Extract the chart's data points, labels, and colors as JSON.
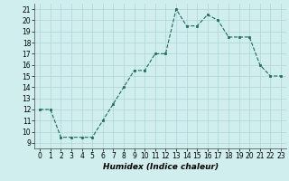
{
  "x": [
    0,
    1,
    2,
    3,
    4,
    5,
    6,
    7,
    8,
    9,
    10,
    11,
    12,
    13,
    14,
    15,
    16,
    17,
    18,
    19,
    20,
    21,
    22,
    23
  ],
  "y": [
    12,
    12,
    9.5,
    9.5,
    9.5,
    9.5,
    11,
    12.5,
    14,
    15.5,
    15.5,
    17,
    17,
    21,
    19.5,
    19.5,
    20.5,
    20,
    18.5,
    18.5,
    18.5,
    16,
    15,
    15
  ],
  "xlabel": "Humidex (Indice chaleur)",
  "xlim": [
    -0.5,
    23.5
  ],
  "ylim": [
    8.5,
    21.5
  ],
  "yticks": [
    9,
    10,
    11,
    12,
    13,
    14,
    15,
    16,
    17,
    18,
    19,
    20,
    21
  ],
  "xticks": [
    0,
    1,
    2,
    3,
    4,
    5,
    6,
    7,
    8,
    9,
    10,
    11,
    12,
    13,
    14,
    15,
    16,
    17,
    18,
    19,
    20,
    21,
    22,
    23
  ],
  "line_color": "#1a6b5a",
  "marker_color": "#1a6b5a",
  "bg_color": "#d0eeee",
  "grid_color": "#aed4d4",
  "label_fontsize": 6.5,
  "tick_fontsize": 5.5
}
